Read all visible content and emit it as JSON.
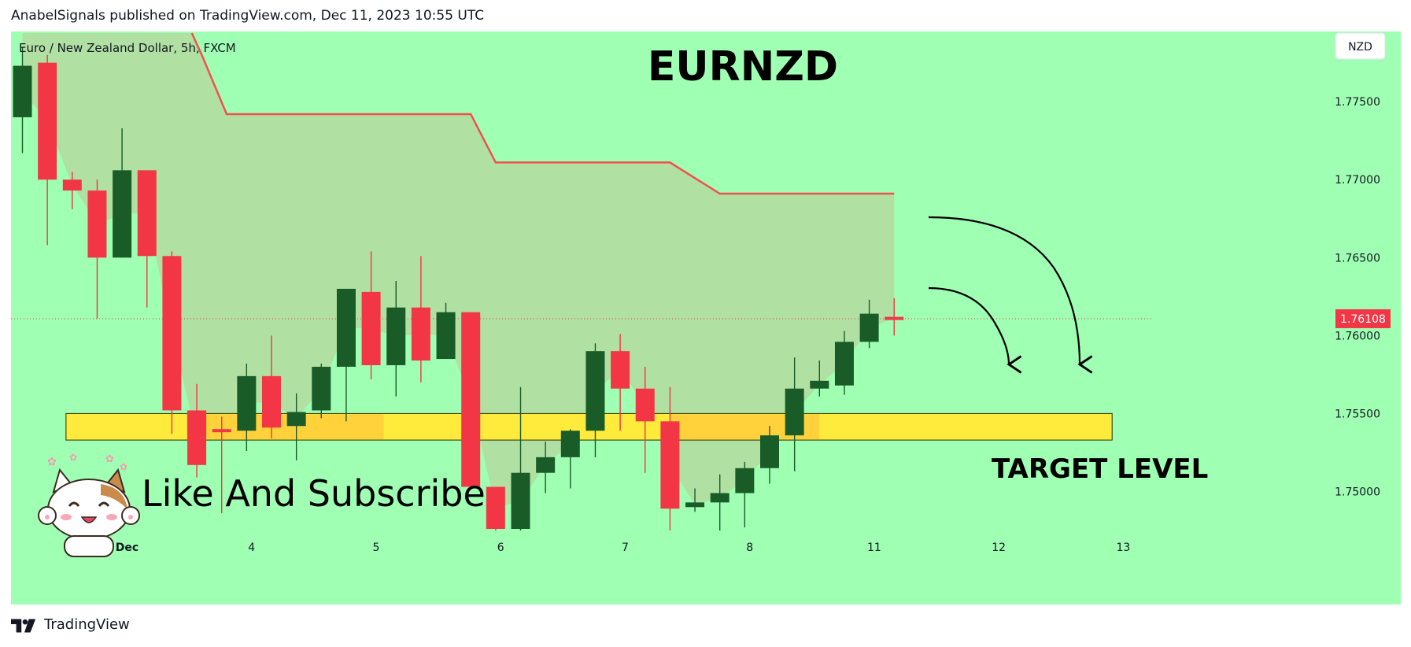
{
  "header": {
    "published_line": "AnabelSignals published on TradingView.com, Dec 11, 2023 10:55 UTC"
  },
  "footer": {
    "brand": "TradingView"
  },
  "colors": {
    "background": "#9fffb3",
    "bull": "#1a5c28",
    "bear": "#f23645",
    "resistance_line": "#f05050",
    "shaded_area": "#b2dea2",
    "target_zone": "#ffeb3b",
    "target_zone_overlap": "#ffc83c",
    "price_label_bg": "#f23645"
  },
  "chart_data": {
    "type": "candlestick",
    "symbol_line": "Euro / New Zealand Dollar, 5h, FXCM",
    "title": "EURNZD",
    "currency_badge": "NZD",
    "y_ticks": [
      "1.77500",
      "1.77000",
      "1.76500",
      "1.76000",
      "1.75500",
      "1.75000"
    ],
    "y_tick_values": [
      1.775,
      1.77,
      1.765,
      1.76,
      1.755,
      1.75
    ],
    "ylim": [
      1.7475,
      1.7795
    ],
    "x_ticks": [
      {
        "label": "Dec",
        "index": 4.2,
        "bold": true
      },
      {
        "label": "4",
        "index": 9.2
      },
      {
        "label": "5",
        "index": 14.2
      },
      {
        "label": "6",
        "index": 19.2
      },
      {
        "label": "7",
        "index": 24.2
      },
      {
        "label": "8",
        "index": 29.2
      },
      {
        "label": "11",
        "index": 34.2
      },
      {
        "label": "12",
        "index": 39.2
      },
      {
        "label": "13",
        "index": 44.2
      }
    ],
    "last_price": "1.76108",
    "last_price_value": 1.76108,
    "candles": [
      {
        "o": 1.774,
        "h": 1.7785,
        "l": 1.7717,
        "c": 1.7773
      },
      {
        "o": 1.7775,
        "h": 1.778,
        "l": 1.7658,
        "c": 1.77
      },
      {
        "o": 1.77,
        "h": 1.7705,
        "l": 1.7681,
        "c": 1.7693
      },
      {
        "o": 1.7693,
        "h": 1.77,
        "l": 1.7611,
        "c": 1.765
      },
      {
        "o": 1.765,
        "h": 1.7733,
        "l": 1.765,
        "c": 1.7706
      },
      {
        "o": 1.7706,
        "h": 1.7706,
        "l": 1.7618,
        "c": 1.7651
      },
      {
        "o": 1.7651,
        "h": 1.7654,
        "l": 1.7537,
        "c": 1.7552
      },
      {
        "o": 1.7552,
        "h": 1.7569,
        "l": 1.7509,
        "c": 1.7517
      },
      {
        "o": 1.754,
        "h": 1.7548,
        "l": 1.7486,
        "c": 1.7538
      },
      {
        "o": 1.7539,
        "h": 1.7582,
        "l": 1.7526,
        "c": 1.7574
      },
      {
        "o": 1.7574,
        "h": 1.76,
        "l": 1.7534,
        "c": 1.7541
      },
      {
        "o": 1.7542,
        "h": 1.7563,
        "l": 1.752,
        "c": 1.7551
      },
      {
        "o": 1.7552,
        "h": 1.7582,
        "l": 1.7547,
        "c": 1.758
      },
      {
        "o": 1.758,
        "h": 1.7629,
        "l": 1.7545,
        "c": 1.763
      },
      {
        "o": 1.7628,
        "h": 1.7654,
        "l": 1.7572,
        "c": 1.7581
      },
      {
        "o": 1.7581,
        "h": 1.7635,
        "l": 1.7561,
        "c": 1.7618
      },
      {
        "o": 1.7618,
        "h": 1.7651,
        "l": 1.757,
        "c": 1.7584
      },
      {
        "o": 1.7585,
        "h": 1.7621,
        "l": 1.7585,
        "c": 1.7615
      },
      {
        "o": 1.7615,
        "h": 1.7615,
        "l": 1.7502,
        "c": 1.7503
      },
      {
        "o": 1.7503,
        "h": 1.7503,
        "l": 1.747,
        "c": 1.7476
      },
      {
        "o": 1.7476,
        "h": 1.7567,
        "l": 1.7469,
        "c": 1.7512
      },
      {
        "o": 1.7512,
        "h": 1.7532,
        "l": 1.7499,
        "c": 1.7522
      },
      {
        "o": 1.7522,
        "h": 1.754,
        "l": 1.7502,
        "c": 1.7539
      },
      {
        "o": 1.7539,
        "h": 1.7595,
        "l": 1.7522,
        "c": 1.759
      },
      {
        "o": 1.759,
        "h": 1.7601,
        "l": 1.7539,
        "c": 1.7566
      },
      {
        "o": 1.7566,
        "h": 1.758,
        "l": 1.7512,
        "c": 1.7545
      },
      {
        "o": 1.7545,
        "h": 1.7567,
        "l": 1.7466,
        "c": 1.7489
      },
      {
        "o": 1.749,
        "h": 1.7502,
        "l": 1.7487,
        "c": 1.7493
      },
      {
        "o": 1.7493,
        "h": 1.7511,
        "l": 1.7471,
        "c": 1.7499
      },
      {
        "o": 1.7499,
        "h": 1.7519,
        "l": 1.7477,
        "c": 1.7515
      },
      {
        "o": 1.7515,
        "h": 1.7542,
        "l": 1.7505,
        "c": 1.7536
      },
      {
        "o": 1.7536,
        "h": 1.7586,
        "l": 1.7513,
        "c": 1.7566
      },
      {
        "o": 1.7566,
        "h": 1.7584,
        "l": 1.7561,
        "c": 1.7571
      },
      {
        "o": 1.7568,
        "h": 1.7603,
        "l": 1.7562,
        "c": 1.7596
      },
      {
        "o": 1.7596,
        "h": 1.7623,
        "l": 1.7592,
        "c": 1.7614
      },
      {
        "o": 1.7612,
        "h": 1.7624,
        "l": 1.76,
        "c": 1.761
      }
    ],
    "resistance_line": [
      {
        "i": 6.8,
        "p": 1.7794
      },
      {
        "i": 7.2,
        "p": 1.778
      },
      {
        "i": 8.2,
        "p": 1.7742
      },
      {
        "i": 18.0,
        "p": 1.7742
      },
      {
        "i": 19.0,
        "p": 1.7711
      },
      {
        "i": 26.0,
        "p": 1.7711
      },
      {
        "i": 28.0,
        "p": 1.7691
      },
      {
        "i": 35.0,
        "p": 1.7691
      }
    ],
    "target_zone": {
      "from_index": 1.75,
      "to_index": 43.75,
      "top": 1.755,
      "bottom": 1.7533
    },
    "annotations": {
      "target_label": "TARGET LEVEL",
      "cta": "Like And Subscribe"
    }
  }
}
